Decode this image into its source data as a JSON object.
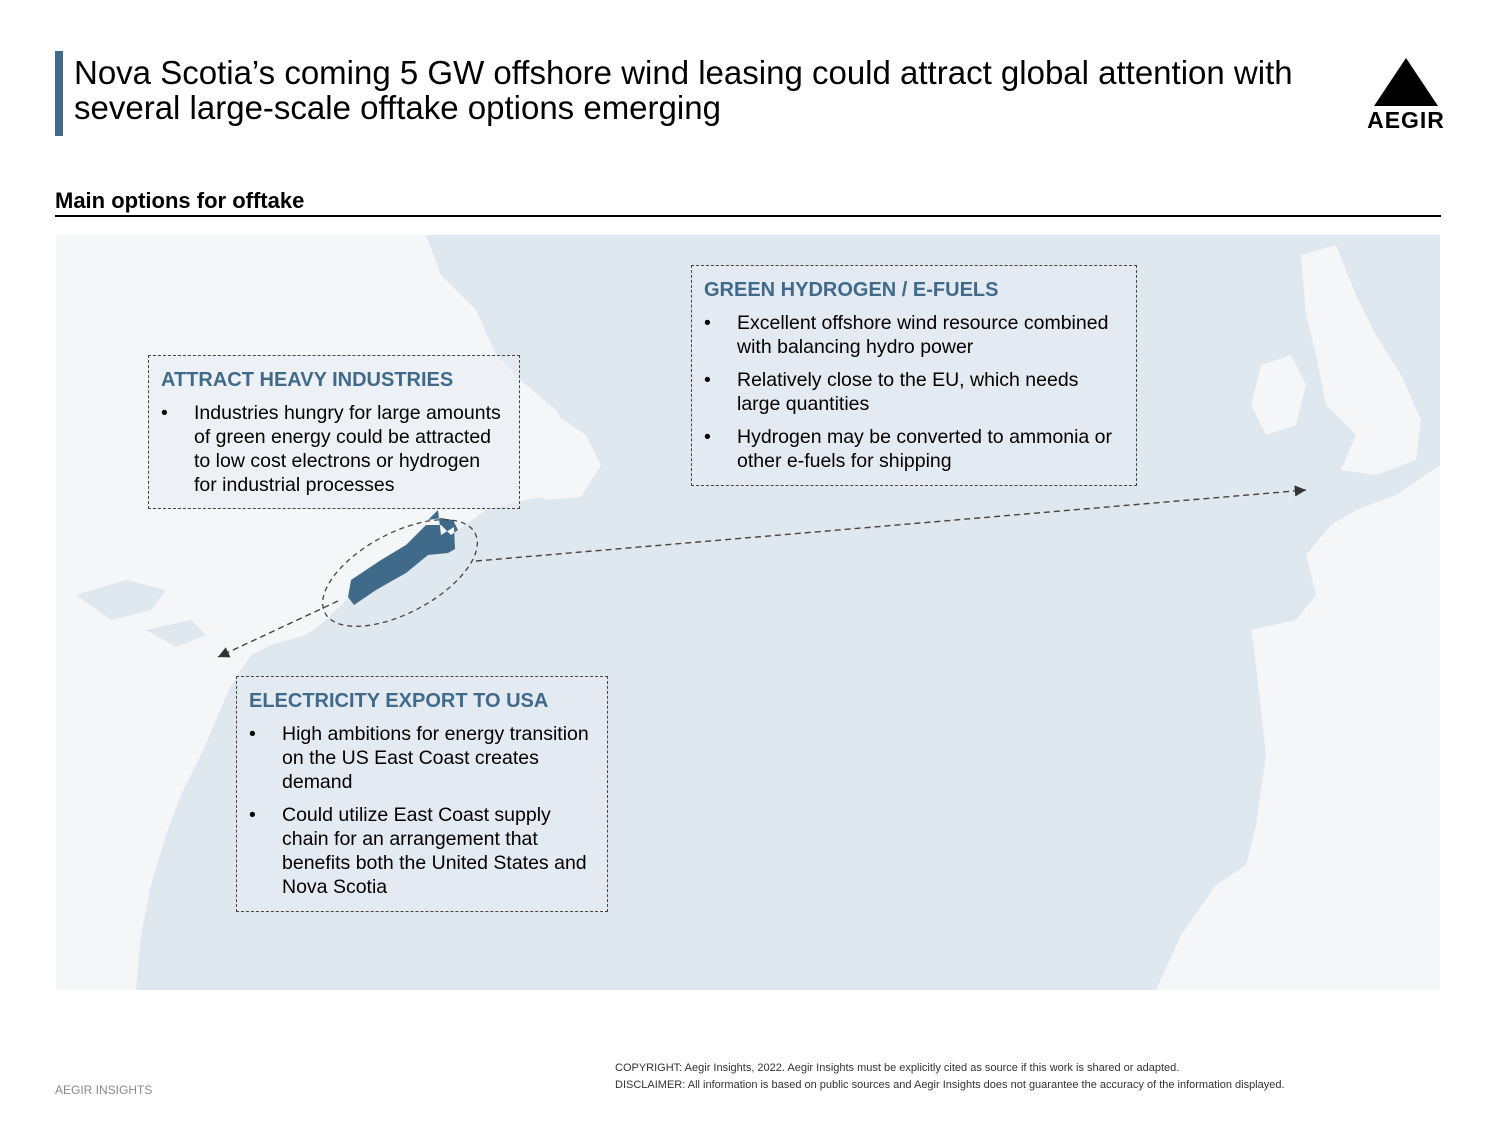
{
  "title": "Nova Scotia’s coming 5 GW offshore wind leasing could attract global attention with several large-scale offtake options emerging",
  "logo": {
    "text": "AEGIR"
  },
  "section_header": "Main options for offtake",
  "boxes": {
    "industries": {
      "heading": "ATTRACT HEAVY INDUSTRIES",
      "bullets": [
        "Industries hungry for large amounts of green energy could be attracted to low cost electrons or hydrogen for industrial processes"
      ]
    },
    "hydrogen": {
      "heading": "GREEN HYDROGEN / E-FUELS",
      "bullets": [
        "Excellent offshore wind resource combined with balancing hydro power",
        "Relatively close to the EU, which needs large quantities",
        "Hydrogen may be converted to ammonia or other e-fuels for shipping"
      ]
    },
    "usa": {
      "heading": "ELECTRICITY EXPORT TO USA",
      "bullets": [
        "High ambitions for energy transition on the US East Coast creates demand",
        "Could utilize East Coast supply chain for an arrangement that benefits both the United States and Nova Scotia"
      ]
    }
  },
  "bullet_char": "•",
  "colors": {
    "accent": "#3f6a8a",
    "map_water": "#dfe7ef",
    "map_land": "#f4f6f8",
    "highlight_land": "#3f6a8a"
  },
  "footer": {
    "left": "AEGIR INSIGHTS",
    "copyright": "COPYRIGHT: Aegir Insights, 2022. Aegir Insights must be explicitly cited as source if this work is shared or adapted.",
    "disclaimer": "DISCLAIMER: All information is based on public sources and Aegir Insights does not guarantee the accuracy of the information displayed."
  }
}
